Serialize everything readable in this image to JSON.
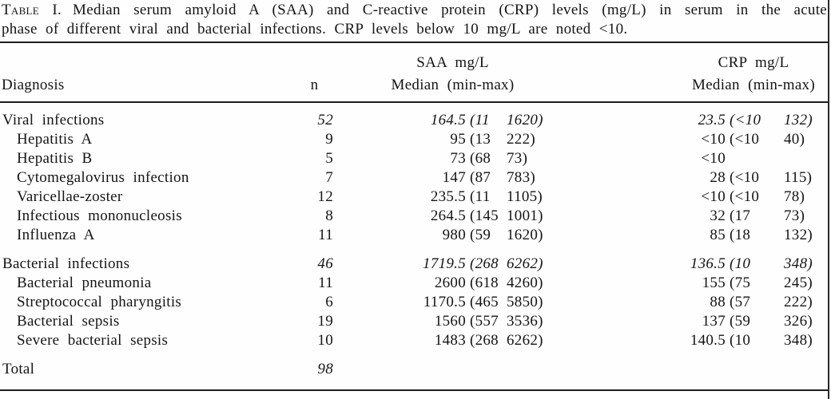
{
  "caption": {
    "label": "Table I.",
    "line1": "Median serum amyloid A (SAA) and C-reactive protein (CRP) levels (mg/L) in serum in the acute",
    "line2": "phase of different viral and bacterial infections. CRP levels below 10 mg/L are noted <10."
  },
  "header": {
    "diagnosis": "Diagnosis",
    "n": "n",
    "saa_line1": "SAA mg/L",
    "saa_line2": "Median (min-max)",
    "crp_line1": "CRP mg/L",
    "crp_line2": "Median (min-max)"
  },
  "rows": [
    {
      "type": "section",
      "gap": false,
      "diagnosis": "Viral infections",
      "n": "52",
      "saa_median": "164.5",
      "saa_min": "(11",
      "saa_max": "1620)",
      "crp_median": "23.5",
      "crp_min": "(<10",
      "crp_max": "132)"
    },
    {
      "type": "item",
      "gap": false,
      "diagnosis": "Hepatitis A",
      "n": "9",
      "saa_median": "95",
      "saa_min": "(13",
      "saa_max": "222)",
      "crp_median": "<10",
      "crp_min": "(<10",
      "crp_max": "40)"
    },
    {
      "type": "item",
      "gap": false,
      "diagnosis": "Hepatitis B",
      "n": "5",
      "saa_median": "73",
      "saa_min": "(68",
      "saa_max": "73)",
      "crp_median": "<10",
      "crp_min": "",
      "crp_max": ""
    },
    {
      "type": "item",
      "gap": false,
      "diagnosis": "Cytomegalovirus infection",
      "n": "7",
      "saa_median": "147",
      "saa_min": "(87",
      "saa_max": "783)",
      "crp_median": "28",
      "crp_min": "(<10",
      "crp_max": "115)"
    },
    {
      "type": "item",
      "gap": false,
      "diagnosis": "Varicellae-zoster",
      "n": "12",
      "saa_median": "235.5",
      "saa_min": "(11",
      "saa_max": "1105)",
      "crp_median": "<10",
      "crp_min": "(<10",
      "crp_max": "78)"
    },
    {
      "type": "item",
      "gap": false,
      "diagnosis": "Infectious mononucleosis",
      "n": "8",
      "saa_median": "264.5",
      "saa_min": "(145",
      "saa_max": "1001)",
      "crp_median": "32",
      "crp_min": "(17",
      "crp_max": "73)"
    },
    {
      "type": "item",
      "gap": false,
      "diagnosis": "Influenza A",
      "n": "11",
      "saa_median": "980",
      "saa_min": "(59",
      "saa_max": "1620)",
      "crp_median": "85",
      "crp_min": "(18",
      "crp_max": "132)"
    },
    {
      "type": "section",
      "gap": true,
      "diagnosis": "Bacterial infections",
      "n": "46",
      "saa_median": "1719.5",
      "saa_min": "(268",
      "saa_max": "6262)",
      "crp_median": "136.5",
      "crp_min": "(10",
      "crp_max": "348)"
    },
    {
      "type": "item",
      "gap": false,
      "diagnosis": "Bacterial pneumonia",
      "n": "11",
      "saa_median": "2600",
      "saa_min": "(618",
      "saa_max": "4260)",
      "crp_median": "155",
      "crp_min": "(75",
      "crp_max": "245)"
    },
    {
      "type": "item",
      "gap": false,
      "diagnosis": "Streptococcal pharyngitis",
      "n": "6",
      "saa_median": "1170.5",
      "saa_min": "(465",
      "saa_max": "5850)",
      "crp_median": "88",
      "crp_min": "(57",
      "crp_max": "222)"
    },
    {
      "type": "item",
      "gap": false,
      "diagnosis": "Bacterial sepsis",
      "n": "19",
      "saa_median": "1560",
      "saa_min": "(557",
      "saa_max": "3536)",
      "crp_median": "137",
      "crp_min": "(59",
      "crp_max": "326)"
    },
    {
      "type": "item",
      "gap": false,
      "diagnosis": "Severe bacterial sepsis",
      "n": "10",
      "saa_median": "1483",
      "saa_min": "(268",
      "saa_max": "6262)",
      "crp_median": "140.5",
      "crp_min": "(10",
      "crp_max": "348)"
    },
    {
      "type": "total",
      "gap": true,
      "diagnosis": "Total",
      "n": "98",
      "saa_median": "",
      "saa_min": "",
      "saa_max": "",
      "crp_median": "",
      "crp_min": "",
      "crp_max": ""
    }
  ]
}
